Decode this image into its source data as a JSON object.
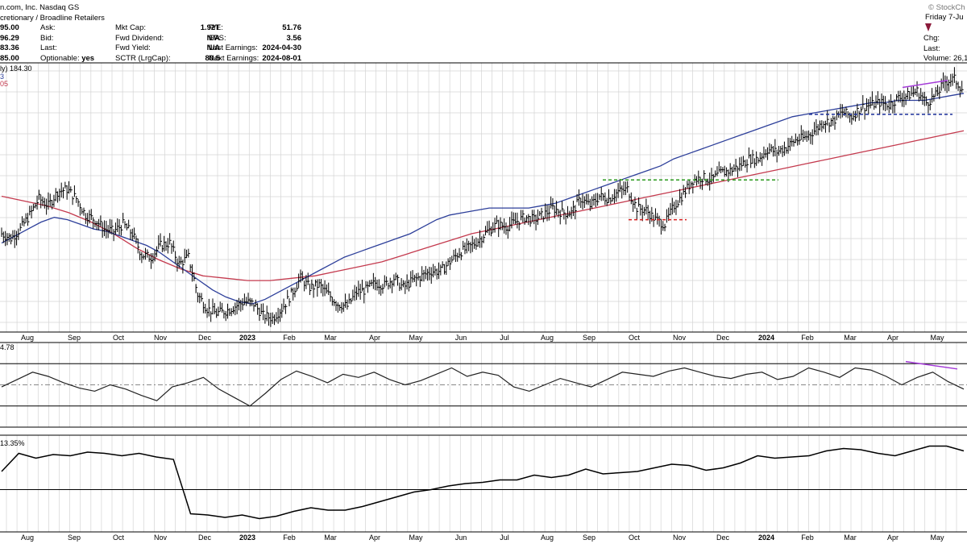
{
  "header": {
    "title": "n.com, Inc. Nasdaq GS",
    "industry": "cretionary / Broadline Retailers",
    "left_values": [
      "95.00",
      "96.29",
      "83.36",
      "85.00"
    ],
    "quote_labels": [
      "Ask:",
      "Bid:",
      "Last:",
      "Optionable:"
    ],
    "optionable": "yes",
    "stats1_labels": [
      "Mkt Cap:",
      "Fwd Dividend:",
      "Fwd Yield:",
      "SCTR (LrgCap):"
    ],
    "stats1_values": [
      "1.92T",
      "N/A",
      "N/A",
      "80.5"
    ],
    "stats2_labels": [
      "P/E:",
      "EPS:",
      "Last Earnings:",
      "Next Earnings:"
    ],
    "stats2_values": [
      "51.76",
      "3.56",
      "2024-04-30",
      "2024-08-01"
    ],
    "watermark": "© StockCh",
    "date": "Friday  7-Ju",
    "chg_label": "Chg:",
    "last_label": "Last:",
    "volume_label": "Volume: 26,1",
    "legend_line1": "ly) 184.30",
    "legend_line2": "3",
    "legend_line3": "05"
  },
  "panels": {
    "rsi_label": "4.78",
    "lower_label": "13.35%"
  },
  "colors": {
    "price_bars": "#000000",
    "ma50": "#2d3f9a",
    "ma200": "#c43a4e",
    "resistance": "#2b9a1e",
    "support_red": "#d62020",
    "support_blue": "#1a2f9a",
    "divergence": "#a43ad8",
    "grid": "#d4d4d4",
    "down_arrow": "#8b1a3a"
  },
  "chart_data": [
    {
      "type": "ohlc",
      "series": [
        {
          "name": "Price"
        },
        {
          "name": "50-day MA"
        },
        {
          "name": "200-day MA"
        }
      ],
      "x_tick_labels": [
        "Aug",
        "Sep",
        "Oct",
        "Nov",
        "Dec",
        "2023",
        "Feb",
        "Mar",
        "Apr",
        "May",
        "Jun",
        "Jul",
        "Aug",
        "Sep",
        "Oct",
        "Nov",
        "Dec",
        "2024",
        "Feb",
        "Mar",
        "Apr",
        "May"
      ],
      "bold_ticks": [
        "2023",
        "2024"
      ],
      "close_series": [
        122,
        120,
        124,
        130,
        137,
        134,
        140,
        141,
        137,
        130,
        128,
        124,
        123,
        126,
        122,
        113,
        112,
        117,
        118,
        109,
        112,
        96,
        90,
        88,
        89,
        91,
        93,
        92,
        87,
        86,
        90,
        96,
        103,
        99,
        100,
        96,
        92,
        91,
        97,
        98,
        101,
        100,
        103,
        99,
        102,
        104,
        106,
        106,
        110,
        114,
        116,
        119,
        123,
        126,
        125,
        127,
        129,
        128,
        130,
        133,
        131,
        131,
        137,
        134,
        138,
        137,
        140,
        141,
        133,
        132,
        128,
        126,
        134,
        139,
        145,
        146,
        145,
        148,
        149,
        151,
        154,
        154,
        158,
        157,
        159,
        162,
        163,
        166,
        170,
        170,
        174,
        172,
        176,
        177,
        178,
        177,
        180,
        181,
        183,
        178,
        181,
        187,
        188,
        183
      ],
      "ma50": [
        118,
        121,
        124,
        127,
        129,
        128,
        126,
        124,
        123,
        121,
        119,
        117,
        114,
        110,
        106,
        102,
        98,
        95,
        93,
        92,
        94,
        97,
        100,
        103,
        106,
        109,
        112,
        114,
        116,
        118,
        120,
        122,
        125,
        128,
        130,
        131,
        132,
        133,
        133,
        133,
        133,
        134,
        135,
        137,
        139,
        141,
        143,
        145,
        147,
        149,
        151,
        154,
        156,
        158,
        160,
        162,
        164,
        166,
        168,
        170,
        172,
        173,
        174,
        175,
        176,
        177,
        178,
        178,
        179,
        179,
        179,
        180,
        181,
        182
      ],
      "ma200": [
        138,
        136,
        134,
        131,
        127,
        122,
        116,
        111,
        107,
        104,
        103,
        102,
        102,
        103,
        104,
        106,
        108,
        110,
        113,
        116,
        119,
        122,
        124,
        126,
        128,
        130,
        132,
        134,
        136,
        138,
        140,
        142,
        144,
        146,
        148,
        150,
        152,
        154,
        156,
        158,
        160,
        162,
        164,
        166
      ],
      "annotations": [
        {
          "type": "resistance",
          "value": 145,
          "color": "green"
        },
        {
          "type": "support",
          "value": 128,
          "color": "red"
        },
        {
          "type": "support",
          "value": 173,
          "color": "blue"
        },
        {
          "type": "divergence",
          "color": "purple"
        }
      ]
    },
    {
      "type": "line",
      "series": [
        {
          "name": "RSI",
          "values": [
            48,
            55,
            62,
            58,
            52,
            47,
            44,
            50,
            46,
            40,
            35,
            48,
            52,
            57,
            46,
            38,
            30,
            42,
            55,
            63,
            58,
            52,
            60,
            57,
            62,
            55,
            50,
            54,
            60,
            66,
            58,
            62,
            59,
            48,
            44,
            50,
            56,
            52,
            48,
            55,
            62,
            60,
            58,
            63,
            66,
            62,
            58,
            56,
            60,
            62,
            55,
            58,
            66,
            62,
            57,
            66,
            64,
            58,
            50,
            57,
            62,
            53,
            46
          ]
        }
      ],
      "levels": [
        70,
        50,
        30
      ]
    },
    {
      "type": "line",
      "series": [
        {
          "name": "Relative Performance",
          "values": [
            45,
            60,
            56,
            59,
            58,
            61,
            60,
            58,
            60,
            57,
            55,
            10,
            9,
            7,
            9,
            6,
            8,
            12,
            15,
            13,
            13,
            16,
            20,
            24,
            28,
            30,
            33,
            35,
            36,
            38,
            38,
            42,
            40,
            42,
            47,
            43,
            44,
            45,
            48,
            51,
            50,
            46,
            48,
            52,
            58,
            56,
            57,
            58,
            62,
            64,
            63,
            60,
            58,
            62,
            66,
            66,
            62
          ]
        }
      ]
    }
  ]
}
